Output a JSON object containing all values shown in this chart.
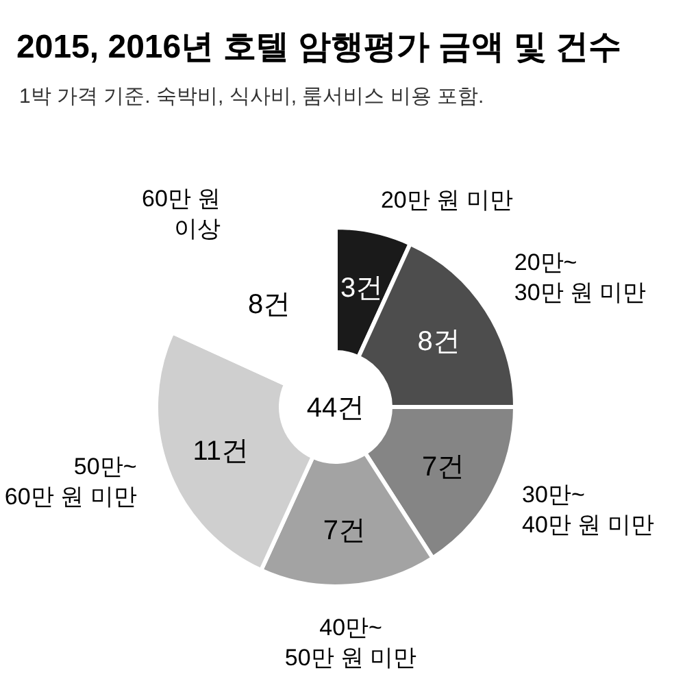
{
  "chart_data": {
    "type": "donut",
    "title": "2015, 2016년 호텔 암행평가 금액 및 건수",
    "subtitle": "1박 가격 기준. 숙박비, 식사비, 룸서비스 비용 포함.",
    "categories": [
      "20만 원 미만",
      "20만~\n30만 원 미만",
      "30만~\n40만 원 미만",
      "40만~\n50만 원 미만",
      "50만~\n60만 원 미만",
      "60만 원\n이상"
    ],
    "values": [
      3,
      8,
      7,
      7,
      11,
      8
    ],
    "colors": [
      "#1a1a1a",
      "#4d4d4d",
      "#858585",
      "#a3a3a3",
      "#cfcfcf",
      "#ffffff"
    ],
    "value_labels": [
      "3건",
      "8건",
      "7건",
      "7건",
      "11건",
      "8건"
    ],
    "annotations": [
      "44건"
    ]
  }
}
